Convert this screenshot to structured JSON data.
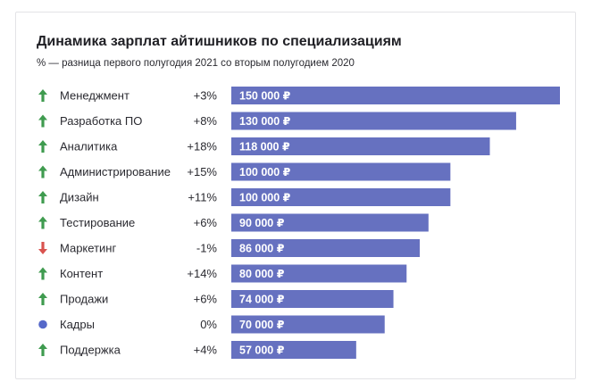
{
  "chart_data": {
    "type": "bar",
    "orientation": "horizontal",
    "title": "Динамика зарплат айтишников по специализациям",
    "subtitle": "% — разница первого полугодия 2021 со вторым полугодием 2020",
    "xlim": [
      0,
      150000
    ],
    "grid": false,
    "colors": {
      "bar": "#6671c0",
      "up": "#3f9b4f",
      "down": "#d9534f",
      "neutral": "#5568c9"
    },
    "rows": [
      {
        "category": "Менеджмент",
        "change": "+3%",
        "trend": "up",
        "value": 150000,
        "value_label": "150 000 ₽"
      },
      {
        "category": "Разработка ПО",
        "change": "+8%",
        "trend": "up",
        "value": 130000,
        "value_label": "130 000 ₽"
      },
      {
        "category": "Аналитика",
        "change": "+18%",
        "trend": "up",
        "value": 118000,
        "value_label": "118 000 ₽"
      },
      {
        "category": "Администрирование",
        "change": "+15%",
        "trend": "up",
        "value": 100000,
        "value_label": "100 000 ₽"
      },
      {
        "category": "Дизайн",
        "change": "+11%",
        "trend": "up",
        "value": 100000,
        "value_label": "100 000 ₽"
      },
      {
        "category": "Тестирование",
        "change": "+6%",
        "trend": "up",
        "value": 90000,
        "value_label": "90 000 ₽"
      },
      {
        "category": "Маркетинг",
        "change": "-1%",
        "trend": "down",
        "value": 86000,
        "value_label": "86 000 ₽"
      },
      {
        "category": "Контент",
        "change": "+14%",
        "trend": "up",
        "value": 80000,
        "value_label": "80 000 ₽"
      },
      {
        "category": "Продажи",
        "change": "+6%",
        "trend": "up",
        "value": 74000,
        "value_label": "74 000 ₽"
      },
      {
        "category": "Кадры",
        "change": "0%",
        "trend": "neutral",
        "value": 70000,
        "value_label": "70 000 ₽"
      },
      {
        "category": "Поддержка",
        "change": "+4%",
        "trend": "up",
        "value": 57000,
        "value_label": "57 000 ₽"
      }
    ]
  }
}
